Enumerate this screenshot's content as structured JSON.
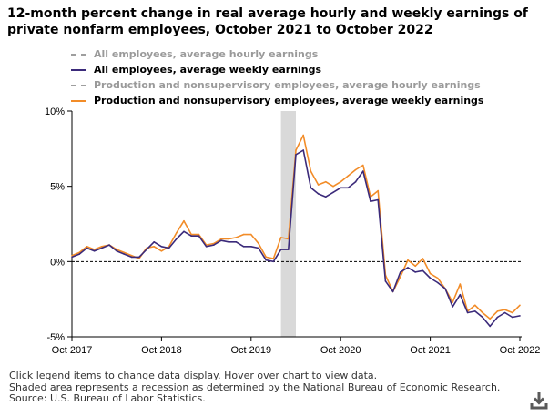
{
  "title_line1": "12-month percent change in real average hourly and weekly earnings of",
  "title_line2": "private nonfarm employees, October 2021 to October 2022",
  "legend": [
    {
      "label": "All employees, average hourly earnings",
      "color": "#9e9e9e",
      "dashed": true,
      "active": false
    },
    {
      "label": "All employees, average weekly earnings",
      "color": "#3b2a7a",
      "dashed": false,
      "active": true
    },
    {
      "label": "Production and nonsupervisory employees, average hourly earnings",
      "color": "#9e9e9e",
      "dashed": true,
      "active": false
    },
    {
      "label": "Production and nonsupervisory employees, average weekly earnings",
      "color": "#f28c28",
      "dashed": false,
      "active": true
    }
  ],
  "footer": {
    "line1": "Click legend items to change data display. Hover over chart to view data.",
    "line2": "Shaded area represents a recession as determined by the National Bureau of Economic Research.",
    "line3": "Source: U.S. Bureau of Labor Statistics."
  },
  "download_icon": "download-icon",
  "chart_data": {
    "type": "line",
    "x_start": "2017-10",
    "x_end": "2022-10",
    "y_ticks": [
      {
        "value": 10,
        "label": "10%"
      },
      {
        "value": 5,
        "label": "5%"
      },
      {
        "value": 0,
        "label": "0%"
      },
      {
        "value": -5,
        "label": "-5%"
      }
    ],
    "x_ticks": [
      {
        "x": "2017-10",
        "label": "Oct 2017"
      },
      {
        "x": "2018-10",
        "label": "Oct 2018"
      },
      {
        "x": "2019-10",
        "label": "Oct 2019"
      },
      {
        "x": "2020-10",
        "label": "Oct 2020"
      },
      {
        "x": "2021-10",
        "label": "Oct 2021"
      },
      {
        "x": "2022-10",
        "label": "Oct 2022"
      }
    ],
    "ylim": [
      -5,
      10
    ],
    "zero_line": true,
    "recession": {
      "start": "2020-02",
      "end": "2020-04",
      "color": "#d9d9d9"
    },
    "series": [
      {
        "name": "All employees, average weekly earnings",
        "color": "#3b2a7a",
        "values": [
          0.3,
          0.5,
          0.9,
          0.7,
          0.9,
          1.1,
          0.7,
          0.5,
          0.3,
          0.3,
          0.8,
          1.3,
          1.0,
          0.9,
          1.5,
          2.0,
          1.7,
          1.7,
          1.0,
          1.1,
          1.4,
          1.3,
          1.3,
          1.0,
          1.0,
          0.9,
          0.1,
          0.0,
          0.8,
          0.8,
          7.1,
          7.4,
          4.9,
          4.5,
          4.3,
          4.6,
          4.9,
          4.9,
          5.3,
          6.0,
          4.0,
          4.1,
          -1.3,
          -2.0,
          -0.7,
          -0.4,
          -0.7,
          -0.6,
          -1.1,
          -1.4,
          -1.8,
          -3.0,
          -2.2,
          -3.4,
          -3.3,
          -3.7,
          -4.3,
          -3.7,
          -3.4,
          -3.7,
          -3.6
        ]
      },
      {
        "name": "Production and nonsupervisory employees, average weekly earnings",
        "color": "#f28c28",
        "values": [
          0.4,
          0.6,
          1.0,
          0.8,
          1.0,
          1.1,
          0.8,
          0.6,
          0.4,
          0.2,
          0.9,
          1.0,
          0.7,
          1.0,
          1.9,
          2.7,
          1.8,
          1.8,
          1.1,
          1.2,
          1.5,
          1.5,
          1.6,
          1.8,
          1.8,
          1.2,
          0.3,
          0.2,
          1.6,
          1.5,
          7.4,
          8.4,
          6.0,
          5.1,
          5.3,
          5.0,
          5.3,
          5.7,
          6.1,
          6.4,
          4.3,
          4.7,
          -0.9,
          -2.0,
          -1.0,
          0.1,
          -0.3,
          0.2,
          -0.8,
          -1.1,
          -1.8,
          -2.7,
          -1.5,
          -3.3,
          -2.9,
          -3.4,
          -3.8,
          -3.3,
          -3.2,
          -3.4,
          -2.9
        ]
      }
    ]
  }
}
